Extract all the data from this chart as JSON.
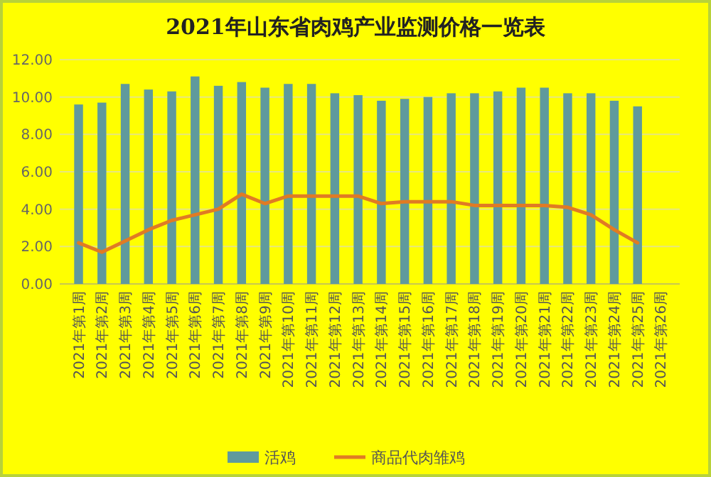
{
  "chart_data": {
    "type": "bar",
    "title": "2021年山东省肉鸡产业监测价格一览表",
    "categories": [
      "2021年第1周",
      "2021年第2周",
      "2021年第3周",
      "2021年第4周",
      "2021年第5周",
      "2021年第6周",
      "2021年第7周",
      "2021年第8周",
      "2021年第9周",
      "2021年第10周",
      "2021年第11周",
      "2021年第12周",
      "2021年第13周",
      "2021年第14周",
      "2021年第15周",
      "2021年第16周",
      "2021年第17周",
      "2021年第18周",
      "2021年第19周",
      "2021年第20周",
      "2021年第21周",
      "2021年第22周",
      "2021年第23周",
      "2021年第24周",
      "2021年第25周",
      "2021年第26周"
    ],
    "series": [
      {
        "name": "活鸡",
        "color": "#5f9a9c",
        "values": [
          9.6,
          9.7,
          10.7,
          10.4,
          10.3,
          11.1,
          10.6,
          10.8,
          10.5,
          10.7,
          10.7,
          10.2,
          10.1,
          9.8,
          9.9,
          10.0,
          10.2,
          10.2,
          10.3,
          10.5,
          10.5,
          10.2,
          10.2,
          9.8,
          9.5,
          null
        ]
      },
      {
        "name": "商品代肉雏鸡",
        "type": "line",
        "color": "#e07b24",
        "values": [
          2.2,
          1.7,
          2.3,
          2.9,
          3.4,
          3.7,
          4.0,
          4.8,
          4.3,
          4.7,
          4.7,
          4.7,
          4.7,
          4.3,
          4.4,
          4.4,
          4.4,
          4.2,
          4.2,
          4.2,
          4.2,
          4.1,
          3.7,
          2.9,
          2.2,
          null
        ]
      }
    ],
    "ylim": [
      0,
      12
    ],
    "yticks": [
      {
        "value": 0,
        "label": "0.00"
      },
      {
        "value": 2,
        "label": "2.00"
      },
      {
        "value": 4,
        "label": "4.00"
      },
      {
        "value": 6,
        "label": "6.00"
      },
      {
        "value": 8,
        "label": "8.00"
      },
      {
        "value": 10,
        "label": "10.00"
      },
      {
        "value": 12,
        "label": "12.00"
      }
    ],
    "grid": "y",
    "legend": "bottom",
    "marker": "none",
    "line_style": "solid"
  }
}
